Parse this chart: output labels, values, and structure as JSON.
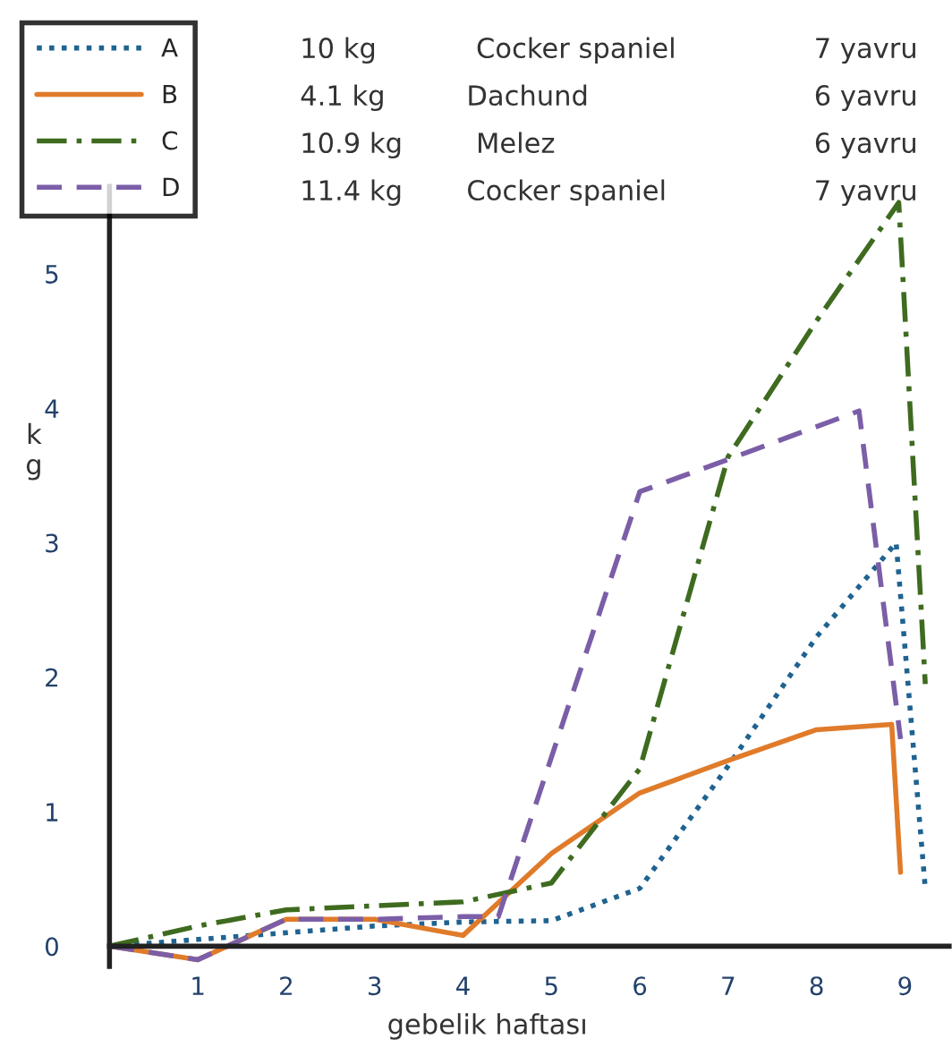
{
  "chart_data": {
    "type": "line",
    "xlabel": "gebelik haftası",
    "ylabel": "kg",
    "xlim": [
      0,
      9.5
    ],
    "ylim": [
      -0.15,
      5.65
    ],
    "xticks": [
      1,
      2,
      3,
      4,
      5,
      6,
      7,
      8,
      9
    ],
    "yticks": [
      0,
      1,
      2,
      3,
      4,
      5
    ],
    "grid": false,
    "legend": "top left",
    "marker": "none",
    "series": [
      {
        "name": "A",
        "color": "#1f6391",
        "line_style": "dotted",
        "x": [
          0,
          1,
          2,
          3,
          4,
          5,
          6,
          7,
          8,
          8.9,
          9.23
        ],
        "values": [
          0,
          0.05,
          0.1,
          0.15,
          0.18,
          0.19,
          0.43,
          1.34,
          2.3,
          3.0,
          0.43
        ]
      },
      {
        "name": "B",
        "color": "#e07b2a",
        "line_style": "solid",
        "x": [
          0,
          1,
          2,
          3,
          4,
          5,
          6,
          7,
          8,
          8.85,
          8.95
        ],
        "values": [
          0,
          -0.1,
          0.2,
          0.2,
          0.08,
          0.69,
          1.14,
          1.38,
          1.61,
          1.65,
          0.55
        ]
      },
      {
        "name": "C",
        "color": "#3e6b1f",
        "line_style": "dashdot",
        "x": [
          0,
          1,
          2,
          3,
          4,
          5,
          6,
          7,
          8,
          8.93,
          9.23
        ],
        "values": [
          0,
          0.15,
          0.27,
          0.3,
          0.33,
          0.47,
          1.32,
          3.64,
          4.65,
          5.53,
          1.95
        ]
      },
      {
        "name": "D",
        "color": "#7b5ea7",
        "line_style": "dashed",
        "x": [
          0,
          1,
          2,
          3,
          4,
          4.4,
          6,
          7,
          8.48,
          8.95
        ],
        "values": [
          0,
          -0.1,
          0.2,
          0.2,
          0.22,
          0.22,
          3.38,
          3.62,
          3.98,
          1.54
        ]
      }
    ],
    "annotations": [
      "10 kg",
      "Cocker spaniel",
      "7 yavru",
      "4.1 kg",
      "Dachund",
      "6 yavru",
      "10.9 kg",
      "Melez",
      "6 yavru",
      "11.4 kg",
      "Cocker spaniel",
      "7 yavru"
    ]
  }
}
